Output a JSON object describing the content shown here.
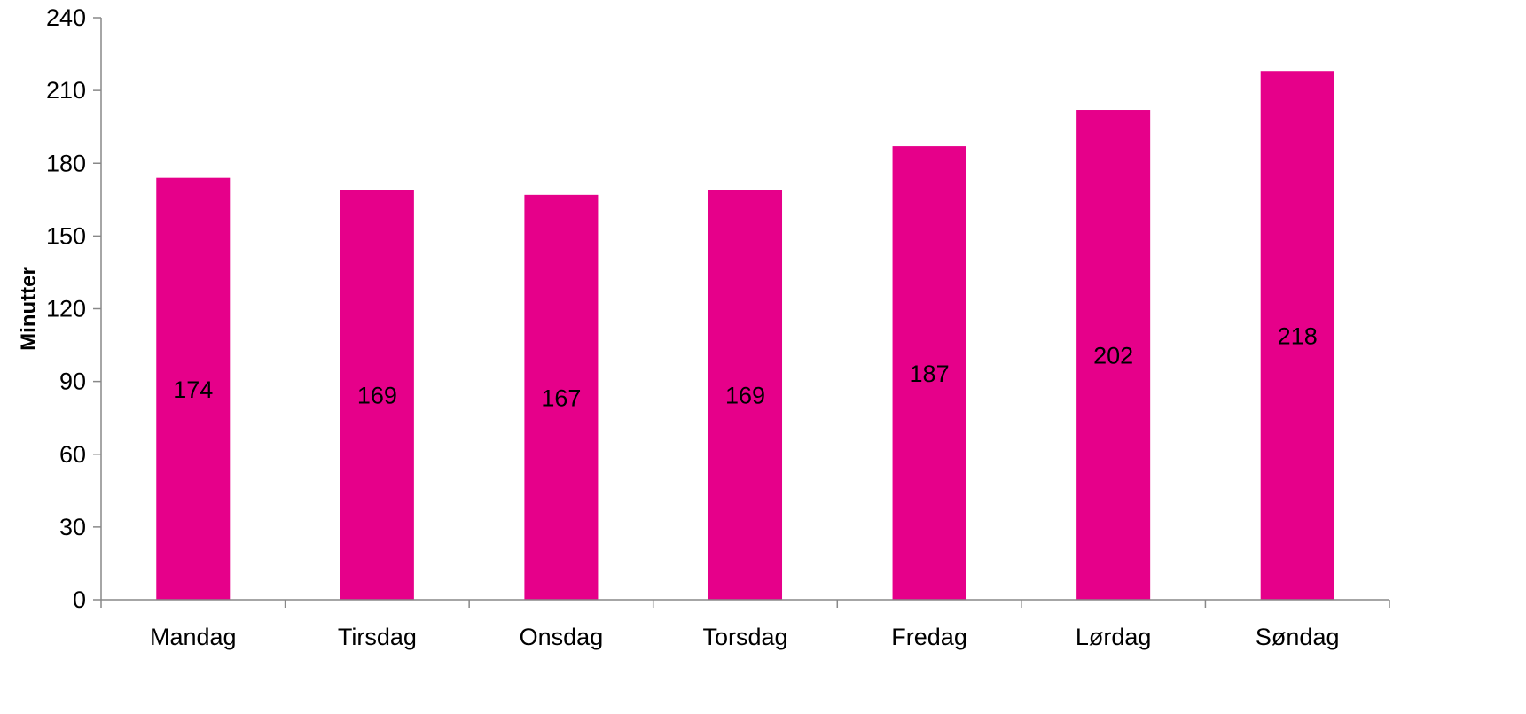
{
  "chart_data": {
    "type": "bar",
    "title": "",
    "xlabel": "",
    "ylabel": "Minutter",
    "ylim": [
      0,
      240
    ],
    "yticks": [
      0,
      30,
      60,
      90,
      120,
      150,
      180,
      210,
      240
    ],
    "categories": [
      "Mandag",
      "Tirsdag",
      "Onsdag",
      "Torsdag",
      "Fredag",
      "Lørdag",
      "Søndag"
    ],
    "values": [
      174,
      169,
      167,
      169,
      187,
      202,
      218
    ],
    "data_labels": [
      "174",
      "169",
      "167",
      "169",
      "187",
      "202",
      "218"
    ],
    "data_label_position": "center",
    "bar_color": "#E6008A",
    "axis_color": "#888888",
    "grid": false,
    "legend": "none"
  }
}
